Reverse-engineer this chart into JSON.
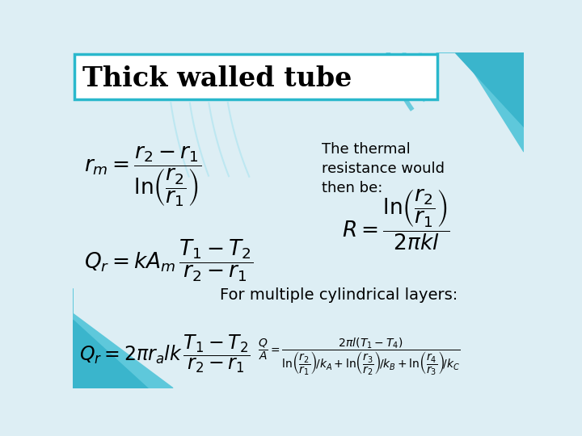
{
  "title": "Thick walled tube",
  "bg_color": "#ddeef4",
  "title_bg": "#ffffff",
  "title_border": "#2ab8cc",
  "text_color": "#000000",
  "formula1": "$r_m = \\dfrac{r_2 - r_1}{\\ln\\!\\left(\\dfrac{r_2}{r_1}\\right)}$",
  "formula2": "$Q_r = kA_m\\,\\dfrac{T_1 - T_2}{r_2 - r_1}$",
  "thermal_text": "The thermal\nresistance would\nthen be:",
  "formula3": "$R = \\dfrac{\\ln\\!\\left(\\dfrac{r_2}{r_1}\\right)}{2\\pi kl}$",
  "multiple_text": "For multiple cylindrical layers:",
  "formula4": "$Q_r = 2\\pi r_a lk\\,\\dfrac{T_1 - T_2}{r_2 - r_1}$",
  "formula5": "$\\dfrac{Q}{A} = \\dfrac{2\\pi l(T_1 - T_4)}{\\ln\\!\\left(\\dfrac{r_2}{r_1}\\right)\\!/k_A + \\ln\\!\\left(\\dfrac{r_3}{r_2}\\right)\\!/k_B + \\ln\\!\\left(\\dfrac{r_4}{r_3}\\right)\\!/k_C}$",
  "cyan_light": "#7fd8e8",
  "cyan_mid": "#3bbbd4",
  "cyan_dark": "#2ab8cc"
}
